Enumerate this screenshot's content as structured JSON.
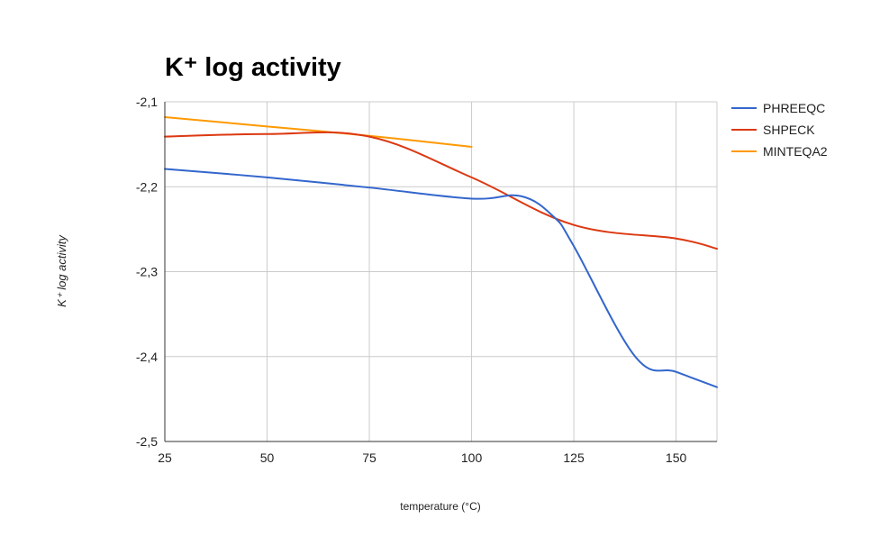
{
  "chart_data": {
    "type": "line",
    "title": "K⁺ log activity",
    "xlabel": "temperature (°C)",
    "ylabel": "K⁺ log activity",
    "xlim": [
      25,
      160
    ],
    "ylim": [
      -2.5,
      -2.1
    ],
    "x_ticks": [
      25,
      50,
      75,
      100,
      125,
      150
    ],
    "x_tick_labels": [
      "25",
      "50",
      "75",
      "100",
      "125",
      "150"
    ],
    "y_ticks": [
      -2.1,
      -2.2,
      -2.3,
      -2.4,
      -2.5
    ],
    "y_tick_labels": [
      "-2,1",
      "-2,2",
      "-2,3",
      "-2,4",
      "-2,5"
    ],
    "grid": true,
    "legend_position": "right",
    "series": [
      {
        "name": "PHREEQC",
        "color": "#3366cc",
        "x": [
          25,
          50,
          75,
          100,
          112,
          120,
          125,
          140,
          150,
          160
        ],
        "y": [
          -2.179,
          -2.189,
          -2.201,
          -2.214,
          -2.211,
          -2.235,
          -2.27,
          -2.4,
          -2.418,
          -2.436
        ]
      },
      {
        "name": "SHPECK",
        "color": "#dc3912",
        "x": [
          25,
          50,
          75,
          100,
          125,
          150,
          160
        ],
        "y": [
          -2.141,
          -2.138,
          -2.141,
          -2.189,
          -2.245,
          -2.261,
          -2.273
        ]
      },
      {
        "name": "MINTEQA2",
        "color": "#ff9900",
        "x": [
          25,
          50,
          75,
          100
        ],
        "y": [
          -2.118,
          -2.129,
          -2.14,
          -2.153
        ]
      }
    ]
  }
}
